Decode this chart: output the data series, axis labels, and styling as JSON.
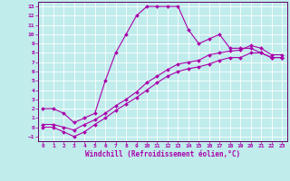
{
  "xlabel": "Windchill (Refroidissement éolien,°C)",
  "bg_color": "#c0ecec",
  "grid_color": "#ffffff",
  "line_color": "#aa00aa",
  "spine_color": "#660066",
  "xlim": [
    -0.5,
    23.5
  ],
  "ylim": [
    -1.5,
    13.5
  ],
  "xticks": [
    0,
    1,
    2,
    3,
    4,
    5,
    6,
    7,
    8,
    9,
    10,
    11,
    12,
    13,
    14,
    15,
    16,
    17,
    18,
    19,
    20,
    21,
    22,
    23
  ],
  "yticks": [
    -1,
    0,
    1,
    2,
    3,
    4,
    5,
    6,
    7,
    8,
    9,
    10,
    11,
    12,
    13
  ],
  "line1_x": [
    0,
    1,
    2,
    3,
    4,
    5,
    6,
    7,
    8,
    9,
    10,
    11,
    12,
    13,
    14,
    15,
    16,
    17,
    18,
    19,
    20,
    21,
    22,
    23
  ],
  "line1_y": [
    2.0,
    2.0,
    1.5,
    0.5,
    1.0,
    1.5,
    5.0,
    8.0,
    10.0,
    12.0,
    13.0,
    13.0,
    13.0,
    13.0,
    10.5,
    9.0,
    9.5,
    10.0,
    8.5,
    8.5,
    8.5,
    8.0,
    7.5,
    7.5
  ],
  "line2_x": [
    0,
    1,
    2,
    3,
    4,
    5,
    6,
    7,
    8,
    9,
    10,
    11,
    12,
    13,
    14,
    15,
    16,
    17,
    18,
    19,
    20,
    21,
    22,
    23
  ],
  "line2_y": [
    0.0,
    0.0,
    -0.5,
    -1.0,
    -0.5,
    0.3,
    1.0,
    1.8,
    2.5,
    3.2,
    4.0,
    4.8,
    5.5,
    6.0,
    6.3,
    6.5,
    6.8,
    7.2,
    7.5,
    7.5,
    8.0,
    8.0,
    7.5,
    7.5
  ],
  "line3_x": [
    0,
    1,
    2,
    3,
    4,
    5,
    6,
    7,
    8,
    9,
    10,
    11,
    12,
    13,
    14,
    15,
    16,
    17,
    18,
    19,
    20,
    21,
    22,
    23
  ],
  "line3_y": [
    0.3,
    0.3,
    0.0,
    -0.3,
    0.3,
    0.8,
    1.5,
    2.3,
    3.0,
    3.8,
    4.8,
    5.5,
    6.2,
    6.8,
    7.0,
    7.2,
    7.8,
    8.0,
    8.2,
    8.3,
    8.8,
    8.5,
    7.8,
    7.8
  ]
}
